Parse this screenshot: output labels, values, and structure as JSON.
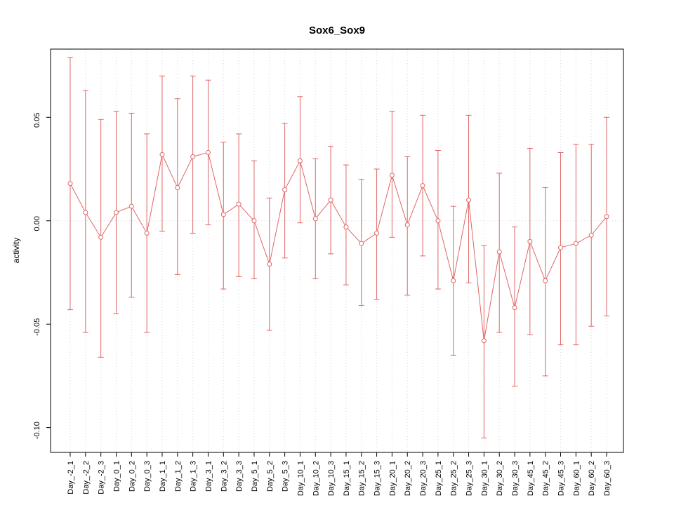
{
  "figure": {
    "background": "#ffffff",
    "border_color": "#000000",
    "grid_color": "#d8d8d8",
    "zero_line_color": "#d8d8d8"
  },
  "chart_data": {
    "type": "line",
    "title": "Sox6_Sox9",
    "xlabel": "",
    "ylabel": "activity",
    "legend": "none",
    "grid": "dotted vertical line at each category; dotted horizontal line at y=0",
    "series_color": "#e06666",
    "marker": "open-circle",
    "ylim": [
      -0.112,
      0.083
    ],
    "yticks": [
      0.05,
      0,
      -0.05,
      -0.1
    ],
    "ytick_labels": [
      "0.05",
      "0.00",
      "-0.05",
      "-0.10"
    ],
    "categories": [
      "Day_-2_1",
      "Day_-2_2",
      "Day_-2_3",
      "Day_0_1",
      "Day_0_2",
      "Day_0_3",
      "Day_1_1",
      "Day_1_2",
      "Day_1_3",
      "Day_3_1",
      "Day_3_2",
      "Day_3_3",
      "Day_5_1",
      "Day_5_2",
      "Day_5_3",
      "Day_10_1",
      "Day_10_2",
      "Day_10_3",
      "Day_15_1",
      "Day_15_2",
      "Day_15_3",
      "Day_20_1",
      "Day_20_2",
      "Day_20_3",
      "Day_25_1",
      "Day_25_2",
      "Day_25_3",
      "Day_30_1",
      "Day_30_2",
      "Day_30_3",
      "Day_45_1",
      "Day_45_2",
      "Day_45_3",
      "Day_60_1",
      "Day_60_2",
      "Day_60_3"
    ],
    "values": [
      0.018,
      0.004,
      -0.008,
      0.004,
      0.007,
      -0.006,
      0.032,
      0.016,
      0.031,
      0.033,
      0.003,
      0.008,
      0.0,
      -0.021,
      0.015,
      0.029,
      0.001,
      0.01,
      -0.003,
      -0.011,
      -0.006,
      0.022,
      -0.002,
      0.017,
      0.0,
      -0.029,
      0.01,
      -0.058,
      -0.015,
      -0.042,
      -0.01,
      -0.029,
      -0.013,
      -0.011,
      -0.007,
      0.002
    ],
    "error_high": [
      0.079,
      0.063,
      0.049,
      0.053,
      0.052,
      0.042,
      0.07,
      0.059,
      0.07,
      0.068,
      0.038,
      0.042,
      0.029,
      0.011,
      0.047,
      0.06,
      0.03,
      0.036,
      0.027,
      0.02,
      0.025,
      0.053,
      0.031,
      0.051,
      0.034,
      0.007,
      0.051,
      -0.012,
      0.023,
      -0.003,
      0.035,
      0.016,
      0.033,
      0.037,
      0.037,
      0.05
    ],
    "error_low": [
      -0.043,
      -0.054,
      -0.066,
      -0.045,
      -0.037,
      -0.054,
      -0.005,
      -0.026,
      -0.006,
      -0.002,
      -0.033,
      -0.027,
      -0.028,
      -0.053,
      -0.018,
      -0.001,
      -0.028,
      -0.016,
      -0.031,
      -0.041,
      -0.038,
      -0.008,
      -0.036,
      -0.017,
      -0.033,
      -0.065,
      -0.03,
      -0.105,
      -0.054,
      -0.08,
      -0.055,
      -0.075,
      -0.06,
      -0.06,
      -0.051,
      -0.046
    ]
  }
}
